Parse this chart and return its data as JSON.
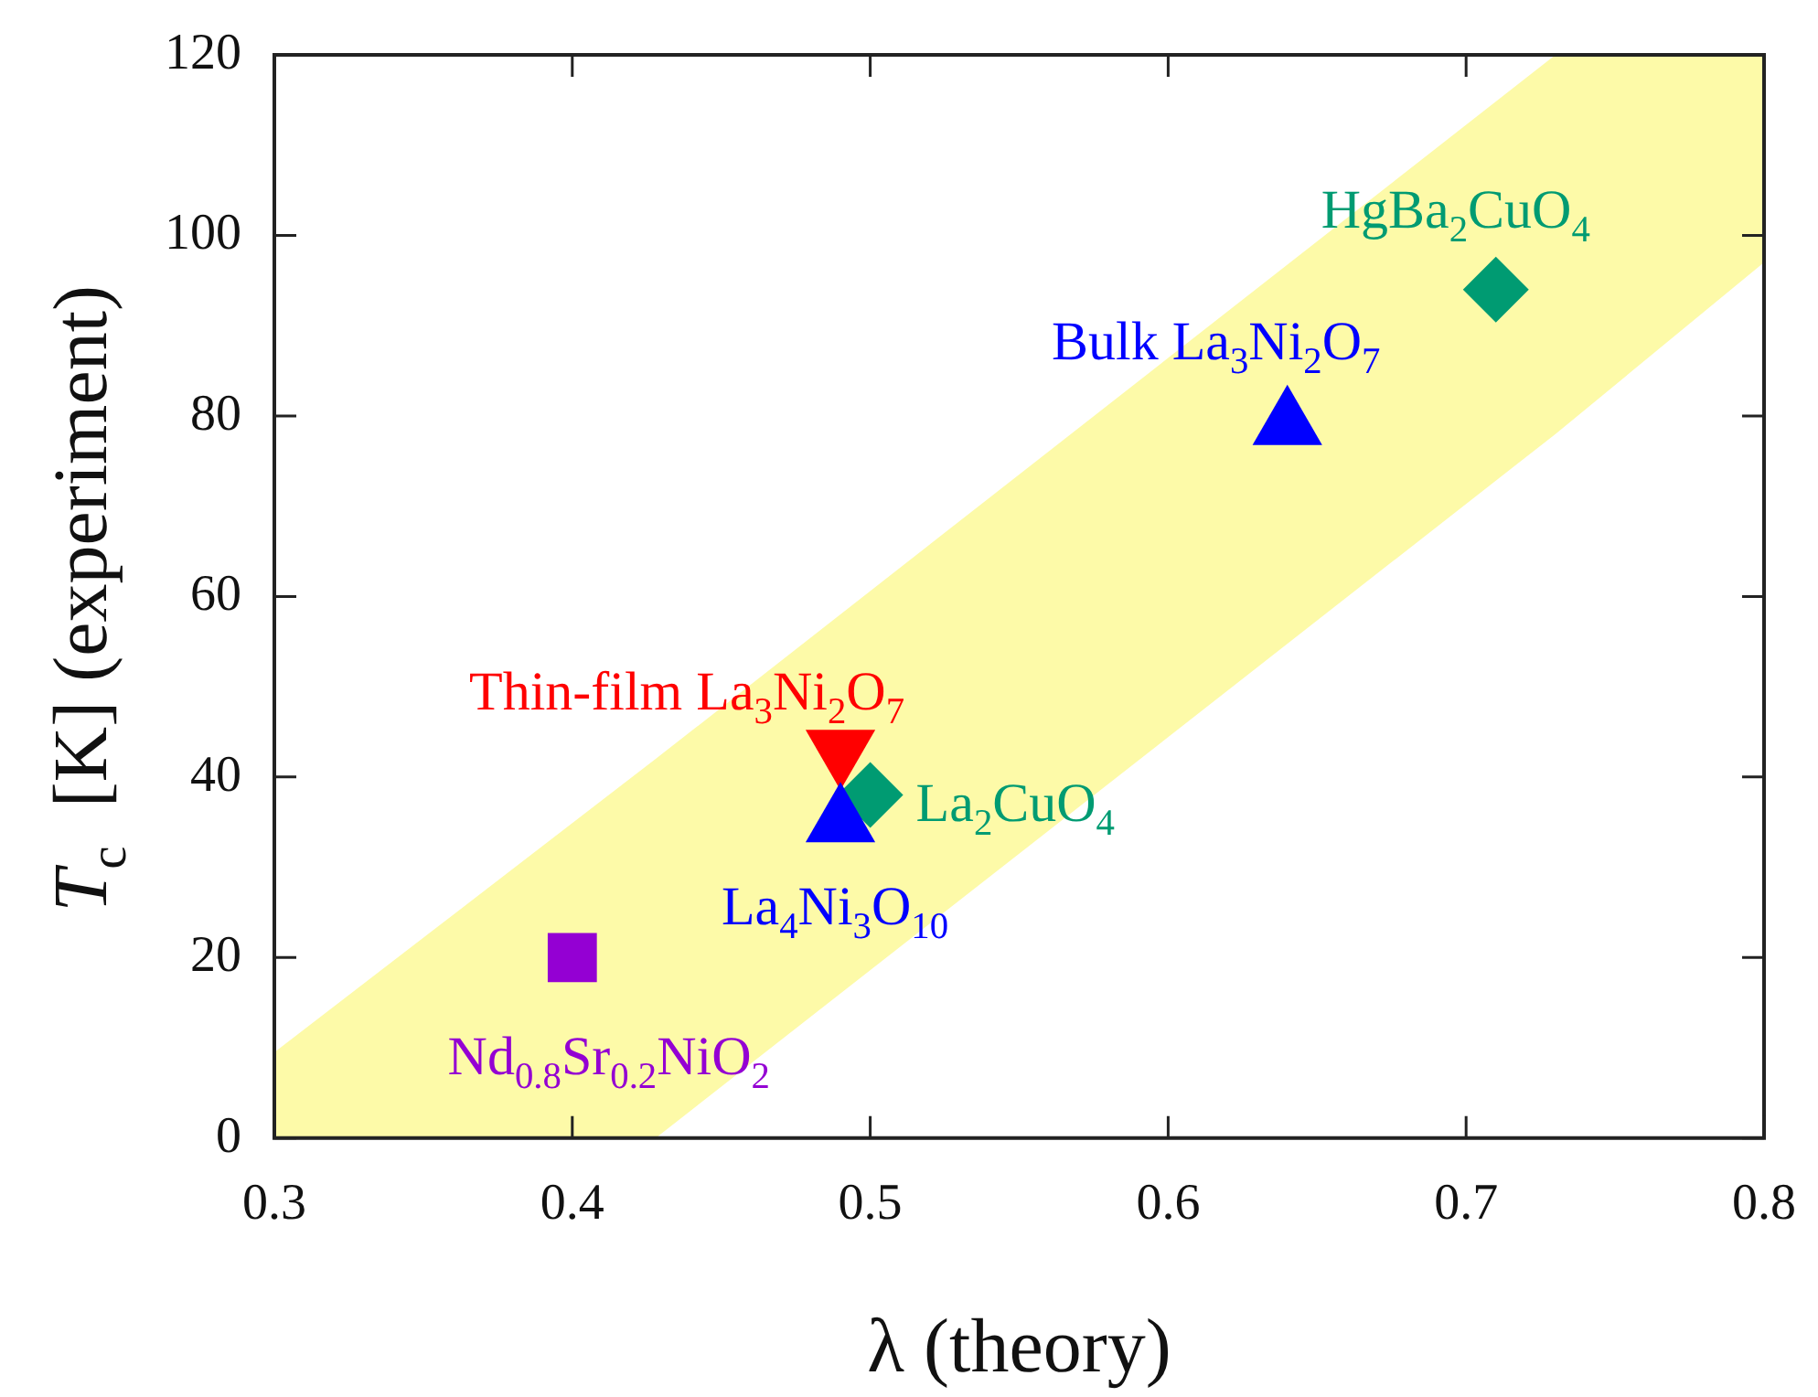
{
  "chart_data": {
    "type": "scatter",
    "xlabel": "λ (theory)",
    "ylabel": "T$_{c}$  [K] (experiment)",
    "xlim": [
      0.3,
      0.8
    ],
    "xticks": [
      0.3,
      0.4,
      0.5,
      0.6,
      0.7,
      0.8
    ],
    "ylim": [
      0,
      120
    ],
    "yticks": [
      0,
      20,
      40,
      60,
      80,
      100,
      120
    ],
    "series": [
      {
        "type": "line",
        "color": "#fdfaa8",
        "x": [
          0.3,
          0.428,
          0.73,
          0.8
        ],
        "values": [
          null,
          null,
          null,
          null
        ],
        "lower": [
          0,
          0,
          78,
          97
        ],
        "upper": [
          9.5,
          42,
          120,
          120
        ]
      },
      {
        "name": "Nd$_{0.8}$Sr$_{0.2}$NiO$_{2}$",
        "color": "#9400d3",
        "marker": "square",
        "x": [
          0.4
        ],
        "values": [
          20
        ]
      },
      {
        "name": "La$_{4}$Ni$_{3}$O$_{10}$",
        "color": "#0000ff",
        "marker": "triangle",
        "x": [
          0.49
        ],
        "values": [
          35
        ]
      },
      {
        "name": "Thin-film La$_{3}$Ni$_{2}$O$_{7}$",
        "color": "#ff0000",
        "marker": "triangle-down",
        "x": [
          0.49
        ],
        "values": [
          43
        ]
      },
      {
        "name": "La$_{2}$CuO$_{4}$",
        "color": "#009b72",
        "marker": "diamond",
        "x": [
          0.5
        ],
        "values": [
          38
        ]
      },
      {
        "name": "Bulk La$_{3}$Ni$_{2}$O$_{7}$",
        "color": "#0000ff",
        "marker": "triangle",
        "x": [
          0.64
        ],
        "values": [
          79
        ]
      },
      {
        "name": "HgBa$_{2}$CuO$_{4}$",
        "color": "#009b72",
        "marker": "diamond",
        "x": [
          0.71
        ],
        "values": [
          94
        ]
      }
    ]
  }
}
